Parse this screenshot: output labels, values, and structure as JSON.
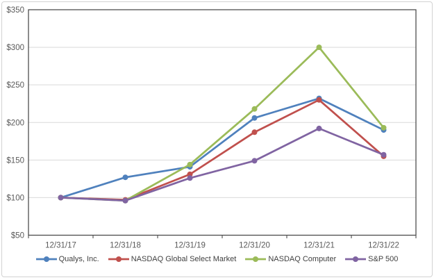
{
  "chart_data": {
    "type": "line",
    "title": "",
    "xlabel": "",
    "ylabel": "",
    "categories": [
      "12/31/17",
      "12/31/18",
      "12/31/19",
      "12/31/20",
      "12/31/21",
      "12/31/22"
    ],
    "ylim": [
      50,
      350
    ],
    "y_ticks": [
      50,
      100,
      150,
      200,
      250,
      300,
      350
    ],
    "y_tick_labels": [
      "$50",
      "$100",
      "$150",
      "$200",
      "$250",
      "$300",
      "$350"
    ],
    "grid": "horizontal",
    "legend_position": "bottom",
    "series": [
      {
        "name": "Qualys, Inc.",
        "color": "#4F81BD",
        "marker": "circle",
        "values": [
          100,
          127,
          141,
          206,
          232,
          190
        ]
      },
      {
        "name": "NASDAQ Global Select Market",
        "color": "#C0504D",
        "marker": "circle",
        "values": [
          100,
          97,
          131,
          187,
          230,
          155
        ]
      },
      {
        "name": "NASDAQ Computer",
        "color": "#9BBB59",
        "marker": "circle",
        "values": [
          100,
          96,
          144,
          218,
          300,
          193
        ]
      },
      {
        "name": "S&P 500",
        "color": "#8064A2",
        "marker": "circle",
        "values": [
          100,
          96,
          126,
          149,
          192,
          157
        ]
      }
    ]
  },
  "style_colors": {
    "plot_border": "#404040",
    "gridline": "#d9d9d9",
    "tick": "#595959",
    "axis_text": "#595959"
  }
}
